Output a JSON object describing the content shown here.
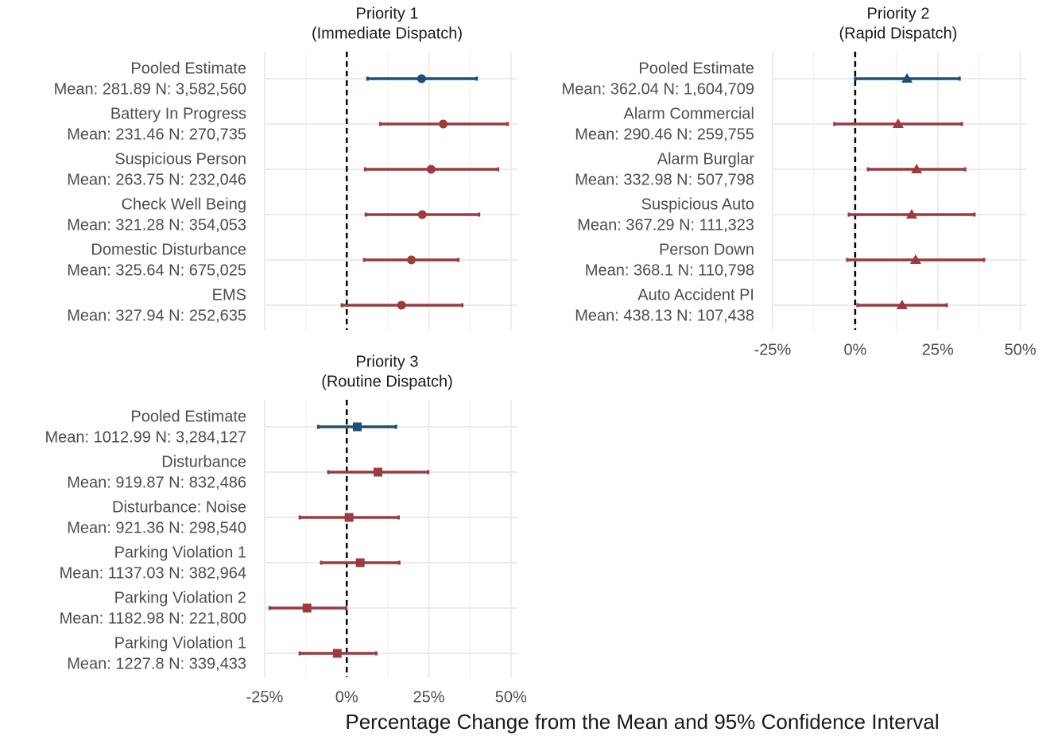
{
  "x_label": "Percentage Change from the Mean and 95% Confidence Interval",
  "chart_data": [
    {
      "type": "forest",
      "title": "Priority 1",
      "subtitle": "(Immediate Dispatch)",
      "marker": "circle",
      "categories": [
        "Pooled Estimate",
        "Battery In Progress",
        "Suspicious Person",
        "Check Well Being",
        "Domestic Disturbance",
        "EMS"
      ],
      "category_stats": [
        "Mean: 281.89 N: 3,582,560",
        "Mean: 231.46 N: 270,735",
        "Mean: 263.75 N: 232,046",
        "Mean: 321.28 N: 354,053",
        "Mean: 325.64 N: 675,025",
        "Mean: 327.94 N: 252,635"
      ],
      "values": [
        22.8,
        29.4,
        25.7,
        23,
        19.7,
        16.7
      ],
      "lower": [
        6.3,
        10.2,
        5.6,
        5.8,
        5.3,
        -1.5
      ],
      "upper": [
        39.6,
        49,
        46.1,
        40.3,
        34,
        35.2
      ],
      "colors": [
        "#1f4e79",
        "#9b3a3f",
        "#9b3a3f",
        "#9b3a3f",
        "#9b3a3f",
        "#9b3a3f"
      ],
      "xlim": [
        -25,
        52
      ],
      "xticks": [
        -25,
        0,
        25,
        50
      ],
      "reference_line": 0,
      "grid": true
    },
    {
      "type": "forest",
      "title": "Priority 2",
      "subtitle": "(Rapid Dispatch)",
      "marker": "triangle",
      "categories": [
        "Pooled Estimate",
        "Alarm Commercial",
        "Alarm Burglar",
        "Suspicious Auto",
        "Person Down",
        "Auto Accident PI"
      ],
      "category_stats": [
        "Mean: 362.04 N: 1,604,709",
        "Mean: 290.46 N: 259,755",
        "Mean: 332.98 N: 507,798",
        "Mean: 367.29 N: 111,323",
        "Mean: 368.1 N: 110,798",
        "Mean: 438.13 N: 107,438"
      ],
      "values": [
        15.7,
        13,
        18.6,
        17.1,
        18.3,
        14.2
      ],
      "lower": [
        0,
        -6.3,
        3.9,
        -1.9,
        -2.4,
        0.7
      ],
      "upper": [
        31.6,
        32.3,
        33.3,
        36.1,
        39,
        27.7
      ],
      "colors": [
        "#1f4e79",
        "#9b3a3f",
        "#9b3a3f",
        "#9b3a3f",
        "#9b3a3f",
        "#9b3a3f"
      ],
      "xlim": [
        -25,
        52
      ],
      "xticks": [
        {
          "value": -25,
          "label": "-25%"
        },
        {
          "value": 0,
          "label": "0%"
        },
        {
          "value": 25,
          "label": "25%"
        },
        {
          "value": 50,
          "label": "50%"
        }
      ],
      "reference_line": 0,
      "grid": true
    },
    {
      "type": "forest",
      "title": "Priority 3",
      "subtitle": "(Routine Dispatch)",
      "marker": "square",
      "categories": [
        "Pooled Estimate",
        "Disturbance",
        "Disturbance: Noise",
        "Parking Violation 1",
        "Parking Violation 2",
        "Parking Violation 1"
      ],
      "category_stats": [
        "Mean: 1012.99 N: 3,284,127",
        "Mean: 919.87 N: 832,486",
        "Mean: 921.36 N: 298,540",
        "Mean: 1137.03 N: 382,964",
        "Mean: 1182.98 N: 221,800",
        "Mean: 1227.8 N: 339,433"
      ],
      "values": [
        3.2,
        9.5,
        0.7,
        4.1,
        -12.1,
        -2.9
      ],
      "lower": [
        -8.7,
        -5.6,
        -14.3,
        -7.8,
        -23.5,
        -14.3
      ],
      "upper": [
        15,
        24.8,
        15.8,
        16,
        -0.2,
        9
      ],
      "colors": [
        "#1f4e79",
        "#9b3a3f",
        "#9b3a3f",
        "#9b3a3f",
        "#9b3a3f",
        "#9b3a3f"
      ],
      "xlim": [
        -25,
        52
      ],
      "xticks": [
        {
          "value": -25,
          "label": "-25%"
        },
        {
          "value": 0,
          "label": "0%"
        },
        {
          "value": 25,
          "label": "25%"
        },
        {
          "value": 50,
          "label": "50%"
        }
      ],
      "reference_line": 0,
      "grid": true
    }
  ]
}
